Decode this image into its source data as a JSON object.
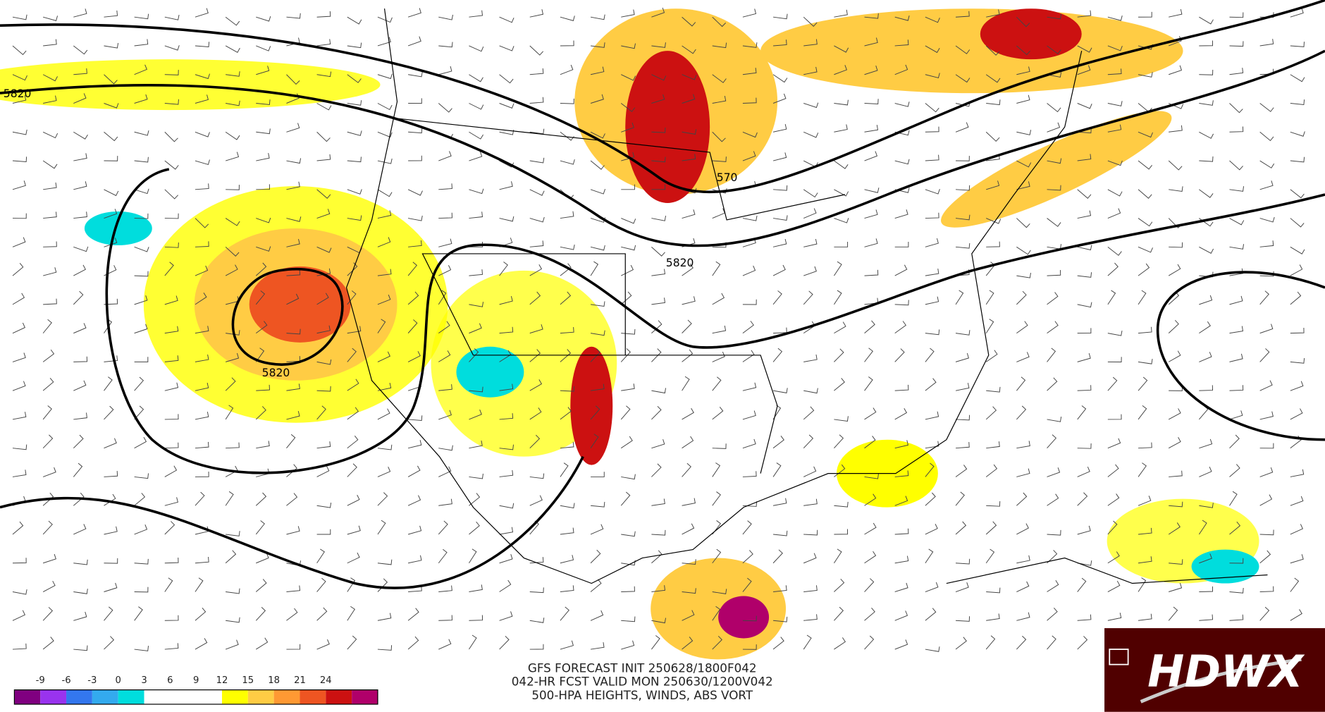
{
  "map": {
    "contour_labels": [
      "5820",
      "5820",
      "5820",
      "570"
    ],
    "caption": [
      "GFS FORECAST INIT 250628/1800F042",
      "042-HR FCST VALID MON 250630/1200V042",
      "500-HPA HEIGHTS, WINDS, ABS VORT"
    ],
    "colorbar": {
      "labels": [
        -9,
        -6,
        -3,
        0,
        3,
        6,
        9,
        12,
        15,
        18,
        21,
        24
      ],
      "colors": [
        "#800080",
        "#9933ee",
        "#3377ee",
        "#33aaee",
        "#00dddd",
        "#ffffff",
        "#ffffff",
        "#ffffff",
        "#ffff00",
        "#ffcc44",
        "#ff9933",
        "#ee5522",
        "#cc1111",
        "#b0006a"
      ]
    },
    "logo": "HDWX"
  }
}
